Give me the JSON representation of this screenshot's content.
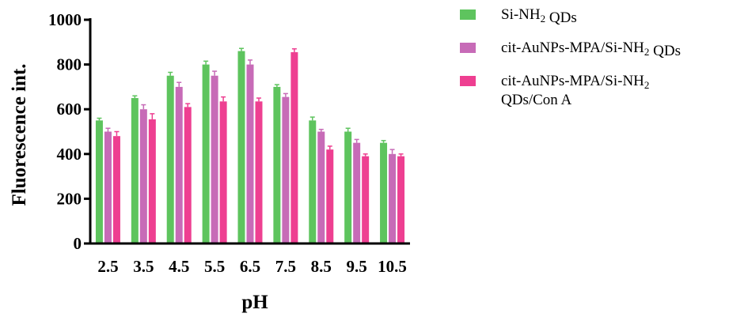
{
  "chart_data": {
    "type": "bar",
    "title": "",
    "xlabel": "pH",
    "ylabel": "Fluorescence int.",
    "ylim": [
      0,
      1000
    ],
    "yticks": [
      "0",
      "200",
      "400",
      "600",
      "800",
      "1000"
    ],
    "categories": [
      "2.5",
      "3.5",
      "4.5",
      "5.5",
      "6.5",
      "7.5",
      "8.5",
      "9.5",
      "10.5"
    ],
    "legend_position": "top-right",
    "series": [
      {
        "name": "Si-NH2 QDs",
        "legend_parts": [
          {
            "text": "Si-NH"
          },
          {
            "text": "2",
            "sub": true
          },
          {
            "text": " QDs"
          }
        ],
        "color": "#5ec45e",
        "values": [
          550,
          650,
          750,
          800,
          860,
          700,
          550,
          500,
          450
        ],
        "errors": [
          10,
          10,
          15,
          15,
          12,
          10,
          15,
          15,
          10
        ]
      },
      {
        "name": "cit-AuNPs-MPA/Si-NH2 QDs",
        "legend_parts": [
          {
            "text": "cit-AuNPs-MPA/Si-NH"
          },
          {
            "text": "2",
            "sub": true
          },
          {
            "text": " QDs"
          }
        ],
        "color": "#c76bb7",
        "values": [
          500,
          600,
          700,
          750,
          800,
          655,
          500,
          450,
          400
        ],
        "errors": [
          15,
          20,
          20,
          20,
          20,
          15,
          10,
          15,
          20
        ]
      },
      {
        "name": "cit-AuNPs-MPA/Si-NH2 QDs/Con A",
        "legend_parts": [
          {
            "text": "cit-AuNPs-MPA/Si-NH"
          },
          {
            "text": "2",
            "sub": true
          },
          {
            "text": "QDs/Con A",
            "newline": true
          }
        ],
        "color": "#ee3f91",
        "values": [
          480,
          555,
          610,
          635,
          635,
          855,
          420,
          390,
          390
        ],
        "errors": [
          20,
          25,
          15,
          20,
          15,
          15,
          15,
          10,
          10
        ]
      }
    ]
  }
}
